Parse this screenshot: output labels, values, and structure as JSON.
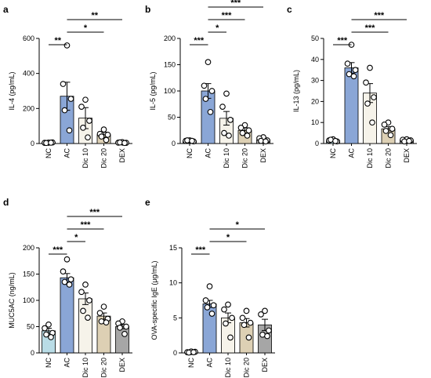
{
  "colors": {
    "NC": "#b9dce6",
    "AC": "#8aa6d6",
    "Dic 10": "#f6f3ea",
    "Dic 20": "#ddd0b4",
    "DEX": "#a6a6a6"
  },
  "chart_data": [
    {
      "panel": "a",
      "type": "bar",
      "ylabel": "IL-4 (pg/mL)",
      "categories": [
        "NC",
        "AC",
        "Dic 10",
        "Dic 20",
        "DEX"
      ],
      "ylim": [
        0,
        600
      ],
      "yticks": [
        0,
        200,
        400,
        600
      ],
      "values": [
        5,
        270,
        145,
        50,
        5
      ],
      "errors": [
        2,
        80,
        60,
        15,
        2
      ],
      "points": [
        [
          5,
          4,
          6,
          3,
          5
        ],
        [
          560,
          340,
          255,
          190,
          75
        ],
        [
          250,
          210,
          130,
          90,
          35
        ],
        [
          80,
          55,
          50,
          40,
          20
        ],
        [
          8,
          5,
          4,
          6,
          3
        ]
      ],
      "sig": [
        {
          "a": 0,
          "b": 1,
          "label": "**"
        },
        {
          "a": 1,
          "b": 3,
          "label": "*"
        },
        {
          "a": 1,
          "b": 4,
          "label": "**"
        }
      ]
    },
    {
      "panel": "b",
      "type": "bar",
      "ylabel": "IL-5 (pg/mL)",
      "categories": [
        "NC",
        "AC",
        "Dic 10",
        "Dic 20",
        "DEX"
      ],
      "ylim": [
        0,
        200
      ],
      "yticks": [
        0,
        50,
        100,
        150,
        200
      ],
      "values": [
        5,
        100,
        48,
        25,
        7
      ],
      "errors": [
        1,
        14,
        13,
        5,
        2
      ],
      "points": [
        [
          6,
          5,
          4,
          6,
          5
        ],
        [
          155,
          110,
          100,
          85,
          60
        ],
        [
          95,
          70,
          45,
          20,
          15
        ],
        [
          35,
          30,
          25,
          20,
          15
        ],
        [
          12,
          10,
          6,
          5,
          4
        ]
      ],
      "sig": [
        {
          "a": 0,
          "b": 1,
          "label": "***"
        },
        {
          "a": 1,
          "b": 2,
          "label": "*"
        },
        {
          "a": 1,
          "b": 3,
          "label": "***"
        },
        {
          "a": 1,
          "b": 4,
          "label": "***"
        }
      ]
    },
    {
      "panel": "c",
      "type": "bar",
      "ylabel": "IL-13 (pg/mL)",
      "categories": [
        "NC",
        "AC",
        "Dic 10",
        "Dic 20",
        "DEX"
      ],
      "ylim": [
        0,
        50
      ],
      "yticks": [
        0,
        10,
        20,
        30,
        40,
        50
      ],
      "values": [
        1.5,
        36,
        24,
        7,
        1.5
      ],
      "errors": [
        0.3,
        2.5,
        4.5,
        1,
        0.3
      ],
      "points": [
        [
          2,
          1.5,
          1,
          1.8,
          1.2
        ],
        [
          47,
          38,
          35,
          33,
          32
        ],
        [
          36,
          29,
          22,
          19,
          10
        ],
        [
          10,
          9,
          7,
          6,
          4
        ],
        [
          2,
          1.8,
          1.5,
          1,
          1.2
        ]
      ],
      "sig": [
        {
          "a": 0,
          "b": 1,
          "label": "***"
        },
        {
          "a": 1,
          "b": 3,
          "label": "***"
        },
        {
          "a": 1,
          "b": 4,
          "label": "***"
        }
      ]
    },
    {
      "panel": "d",
      "type": "bar",
      "ylabel": "MUC5AC (ng/mL)",
      "categories": [
        "NC",
        "AC",
        "Dic 10",
        "Dic 20",
        "DEX"
      ],
      "ylim": [
        0,
        200
      ],
      "yticks": [
        0,
        50,
        100,
        150,
        200
      ],
      "values": [
        42,
        143,
        103,
        70,
        50
      ],
      "errors": [
        5,
        8,
        11,
        6,
        4
      ],
      "points": [
        [
          54,
          47,
          38,
          35,
          30
        ],
        [
          178,
          155,
          140,
          135,
          130
        ],
        [
          130,
          116,
          100,
          80,
          67
        ],
        [
          88,
          76,
          65,
          60,
          58
        ],
        [
          60,
          56,
          50,
          48,
          36
        ]
      ],
      "sig": [
        {
          "a": 0,
          "b": 1,
          "label": "***"
        },
        {
          "a": 1,
          "b": 2,
          "label": "*"
        },
        {
          "a": 1,
          "b": 3,
          "label": "***"
        },
        {
          "a": 1,
          "b": 4,
          "label": "***"
        }
      ]
    },
    {
      "panel": "e",
      "type": "bar",
      "ylabel": "OVA-specific IgE (μg/mL)",
      "categories": [
        "NC",
        "AC",
        "Dic 10",
        "Dic 20",
        "DEX"
      ],
      "ylim": [
        0,
        15
      ],
      "yticks": [
        0,
        5,
        10,
        15
      ],
      "values": [
        0.1,
        7,
        5,
        4.3,
        4
      ],
      "errors": [
        0.05,
        0.5,
        0.7,
        0.6,
        0.8
      ],
      "points": [
        [
          0.2,
          0.1,
          0.15,
          0.05,
          0.1
        ],
        [
          9.5,
          7.5,
          6.8,
          6.5,
          5.6
        ],
        [
          6.9,
          6.2,
          5,
          4.2,
          2.2
        ],
        [
          6,
          5,
          4.3,
          4,
          2.2
        ],
        [
          6,
          5.5,
          3.2,
          2.6,
          2.4
        ]
      ],
      "sig": [
        {
          "a": 0,
          "b": 1,
          "label": "***"
        },
        {
          "a": 1,
          "b": 3,
          "label": "*"
        },
        {
          "a": 1,
          "b": 4,
          "label": "*"
        }
      ]
    }
  ]
}
